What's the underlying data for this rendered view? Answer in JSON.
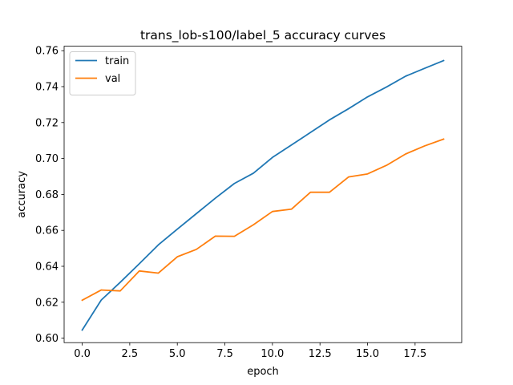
{
  "chart_data": {
    "type": "line",
    "title": "trans_lob-s100/label_5 accuracy curves",
    "xlabel": "epoch",
    "ylabel": "accuracy",
    "xlim": [
      -0.95,
      19.95
    ],
    "ylim": [
      0.5975,
      0.7625
    ],
    "xticks": [
      0.0,
      2.5,
      5.0,
      7.5,
      10.0,
      12.5,
      15.0,
      17.5
    ],
    "xtick_labels": [
      "0.0",
      "2.5",
      "5.0",
      "7.5",
      "10.0",
      "12.5",
      "15.0",
      "17.5"
    ],
    "yticks": [
      0.6,
      0.62,
      0.64,
      0.66,
      0.68,
      0.7,
      0.72,
      0.74,
      0.76
    ],
    "ytick_labels": [
      "0.60",
      "0.62",
      "0.64",
      "0.66",
      "0.68",
      "0.70",
      "0.72",
      "0.74",
      "0.76"
    ],
    "grid": false,
    "legend_position": "top-left",
    "x": [
      0,
      1,
      2,
      3,
      4,
      5,
      6,
      7,
      8,
      9,
      10,
      11,
      12,
      13,
      14,
      15,
      16,
      17,
      18,
      19
    ],
    "series": [
      {
        "name": "train",
        "color": "#1f77b4",
        "values": [
          0.6045,
          0.6212,
          0.6311,
          0.6414,
          0.6519,
          0.6607,
          0.6693,
          0.6779,
          0.6861,
          0.6918,
          0.7006,
          0.7075,
          0.7145,
          0.7215,
          0.7277,
          0.7343,
          0.7398,
          0.7458,
          0.7502,
          0.7545
        ]
      },
      {
        "name": "val",
        "color": "#ff7f0e",
        "values": [
          0.6211,
          0.6268,
          0.6263,
          0.6374,
          0.6362,
          0.6453,
          0.6494,
          0.6568,
          0.6567,
          0.6631,
          0.6705,
          0.6718,
          0.6812,
          0.6812,
          0.6897,
          0.6914,
          0.6962,
          0.7025,
          0.707,
          0.7108
        ]
      }
    ]
  }
}
